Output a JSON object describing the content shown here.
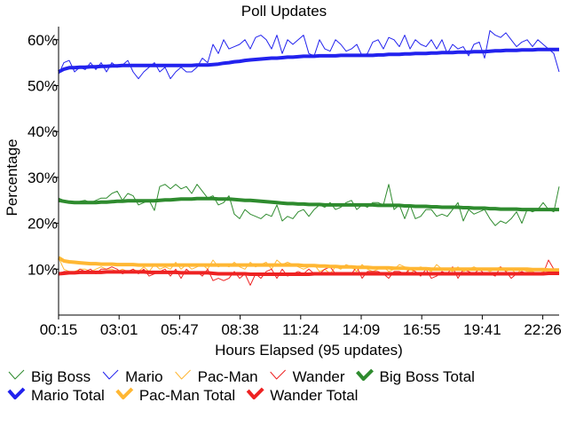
{
  "chart_data": {
    "type": "line",
    "title": "Poll Updates",
    "xlabel": "Hours Elapsed (95 updates)",
    "ylabel": "Percentage",
    "x_ticks": [
      "00:15",
      "03:01",
      "05:47",
      "08:38",
      "11:24",
      "14:09",
      "16:55",
      "19:41",
      "22:26"
    ],
    "y_ticks": [
      "10%",
      "20%",
      "30%",
      "40%",
      "50%",
      "60%"
    ],
    "ylim": [
      0,
      62
    ],
    "n_updates": 95,
    "grid": false,
    "legend_position": "bottom",
    "series": [
      {
        "name": "Big Boss",
        "color": "#2e8b2e",
        "style": "thin",
        "values": [
          25.5,
          25,
          24.5,
          24.5,
          24.8,
          25,
          24.5,
          25,
          25.5,
          25.5,
          26.5,
          27,
          25,
          26.5,
          26,
          24,
          24.5,
          25,
          22.8,
          28,
          28.5,
          27.5,
          28.5,
          27.5,
          28,
          26.5,
          28.5,
          27,
          25.5,
          26,
          24,
          24.5,
          26,
          22,
          21,
          23,
          22,
          21.5,
          21,
          22,
          21.5,
          24,
          20.5,
          21.5,
          21,
          22.5,
          23,
          21.5,
          23,
          24,
          23.5,
          24.5,
          23,
          23.5,
          24.5,
          25,
          23,
          24,
          23.5,
          24.5,
          24.5,
          24,
          28.5,
          23,
          24,
          21,
          24,
          21,
          21.5,
          23,
          23,
          21.5,
          22,
          21.5,
          23,
          24.5,
          20.5,
          23,
          22,
          22.5,
          23,
          21,
          19.5,
          20.5,
          20,
          21,
          22.5,
          20,
          23,
          22.5,
          23,
          24.5,
          23,
          22.5,
          28
        ]
      },
      {
        "name": "Mario",
        "color": "#2222ee",
        "style": "thin",
        "values": [
          52.5,
          55,
          55.5,
          53,
          54,
          53.5,
          55,
          53.5,
          55,
          53,
          55,
          54,
          54.5,
          55.5,
          53,
          51.5,
          53,
          54,
          55,
          53,
          54,
          51.5,
          53,
          54,
          53,
          53,
          54,
          56,
          55,
          59,
          57,
          60,
          58,
          58.5,
          59,
          60,
          58,
          60.5,
          61,
          60,
          58,
          61,
          57,
          60,
          59,
          60,
          61,
          57,
          56.5,
          60,
          58,
          57.5,
          60,
          59,
          57.5,
          58,
          59,
          56.5,
          57,
          59.5,
          60,
          58,
          60.5,
          60,
          58.5,
          61,
          58,
          60,
          59,
          58.5,
          60,
          58,
          60,
          57,
          59,
          58,
          58.5,
          56.5,
          59,
          59.5,
          56,
          62,
          61,
          60.5,
          61.5,
          60,
          58.5,
          59.5,
          60,
          58.5,
          60,
          59,
          58,
          57,
          53
        ]
      },
      {
        "name": "Pac-Man",
        "color": "#ffb733",
        "style": "thin",
        "values": [
          12.5,
          10,
          9.5,
          9.5,
          10,
          10,
          9.5,
          10,
          10.5,
          10,
          10,
          9.5,
          10,
          9.5,
          10,
          9.5,
          10.5,
          9.5,
          11,
          10,
          10.5,
          10,
          11.5,
          10,
          11,
          10,
          10.5,
          11,
          10,
          12,
          10.5,
          11,
          10.5,
          11.5,
          10.5,
          10,
          11.5,
          10.5,
          11,
          11.5,
          10,
          12,
          11,
          11.5,
          11,
          10.5,
          10,
          10.5,
          11,
          9.5,
          10,
          9,
          10.5,
          10,
          11,
          10.5,
          9.5,
          11,
          10,
          9.5,
          10,
          10.5,
          9.5,
          10,
          11,
          10.5,
          9,
          10,
          10.5,
          10,
          9.5,
          11,
          10,
          10,
          9.5,
          10.5,
          9.5,
          10,
          10.5,
          10,
          10,
          9.5,
          10,
          10.5,
          9.5,
          10,
          9,
          10,
          9.5,
          9.5,
          9,
          9.5,
          10,
          9.5,
          9
        ]
      },
      {
        "name": "Wander",
        "color": "#ee2222",
        "style": "thin",
        "values": [
          9,
          9.5,
          9.5,
          9,
          10,
          9.5,
          10,
          9,
          10,
          10,
          10.5,
          10,
          9,
          9.5,
          10,
          9,
          10,
          8.5,
          9,
          9.5,
          10,
          8.5,
          10,
          8,
          10,
          9,
          9.5,
          8.5,
          10,
          7.5,
          8,
          7.5,
          8,
          9.5,
          8,
          9,
          6.5,
          9,
          8,
          9.5,
          10,
          8,
          10,
          8.5,
          9,
          9.5,
          9,
          10,
          9,
          9,
          10,
          10.5,
          9,
          9,
          9,
          9,
          10.5,
          8,
          9.5,
          9.5,
          9.5,
          9,
          8,
          9.5,
          9.5,
          9,
          10,
          9.5,
          8.5,
          10,
          8,
          8.5,
          9.5,
          9,
          10.5,
          8,
          10,
          9.5,
          9,
          10,
          9,
          9,
          8.5,
          10.5,
          9.5,
          8,
          9,
          9.5,
          9,
          9,
          9,
          9,
          12,
          10,
          9
        ]
      },
      {
        "name": "Big Boss Total",
        "color": "#2e8b2e",
        "style": "thick",
        "values": [
          25,
          24.8,
          24.6,
          24.5,
          24.5,
          24.5,
          24.5,
          24.5,
          24.6,
          24.6,
          24.7,
          24.8,
          24.8,
          24.9,
          24.9,
          24.9,
          24.9,
          24.9,
          24.9,
          25,
          25.1,
          25.1,
          25.2,
          25.3,
          25.3,
          25.3,
          25.4,
          25.4,
          25.4,
          25.4,
          25.3,
          25.3,
          25.3,
          25.2,
          25.1,
          25,
          25,
          24.9,
          24.8,
          24.7,
          24.6,
          24.5,
          24.4,
          24.3,
          24.3,
          24.2,
          24.2,
          24.1,
          24.1,
          24.1,
          24,
          24,
          24,
          24,
          24,
          24,
          24,
          24,
          24,
          24,
          23.9,
          23.9,
          23.9,
          23.9,
          23.9,
          23.8,
          23.8,
          23.7,
          23.7,
          23.7,
          23.6,
          23.6,
          23.5,
          23.5,
          23.5,
          23.5,
          23.4,
          23.4,
          23.3,
          23.3,
          23.3,
          23.2,
          23.2,
          23.1,
          23.1,
          23.1,
          23.1,
          23,
          23,
          23,
          23,
          23,
          23,
          23,
          23
        ]
      },
      {
        "name": "Mario Total",
        "color": "#2222ee",
        "style": "thick",
        "values": [
          53,
          53.6,
          53.9,
          53.9,
          54,
          54,
          54.1,
          54.1,
          54.2,
          54.2,
          54.3,
          54.3,
          54.4,
          54.4,
          54.4,
          54.4,
          54.4,
          54.4,
          54.4,
          54.4,
          54.4,
          54.4,
          54.4,
          54.4,
          54.4,
          54.4,
          54.5,
          54.5,
          54.5,
          54.6,
          54.7,
          54.9,
          55,
          55.2,
          55.3,
          55.5,
          55.6,
          55.7,
          55.8,
          55.9,
          56,
          56,
          56.1,
          56.2,
          56.2,
          56.3,
          56.4,
          56.4,
          56.4,
          56.5,
          56.5,
          56.5,
          56.5,
          56.6,
          56.6,
          56.6,
          56.6,
          56.6,
          56.6,
          56.6,
          56.7,
          56.7,
          56.8,
          56.8,
          56.8,
          56.9,
          56.9,
          57,
          57,
          57,
          57.1,
          57.1,
          57.2,
          57.2,
          57.2,
          57.3,
          57.3,
          57.3,
          57.4,
          57.4,
          57.4,
          57.5,
          57.6,
          57.6,
          57.7,
          57.7,
          57.7,
          57.8,
          57.8,
          57.8,
          57.9,
          57.9,
          57.9,
          57.9,
          57.9
        ]
      },
      {
        "name": "Pac-Man Total",
        "color": "#ffb733",
        "style": "thick",
        "values": [
          12.5,
          11.8,
          11.6,
          11.5,
          11.4,
          11.3,
          11.2,
          11.2,
          11.1,
          11.1,
          11.1,
          11,
          11,
          11,
          11,
          10.9,
          10.9,
          10.9,
          10.9,
          10.9,
          10.9,
          10.9,
          10.9,
          10.9,
          10.9,
          10.9,
          10.9,
          10.9,
          10.9,
          10.9,
          10.9,
          10.9,
          10.9,
          10.9,
          10.9,
          10.9,
          10.9,
          10.9,
          10.9,
          10.9,
          10.9,
          10.9,
          10.9,
          10.9,
          10.9,
          10.9,
          10.8,
          10.8,
          10.8,
          10.7,
          10.7,
          10.6,
          10.6,
          10.5,
          10.5,
          10.5,
          10.4,
          10.4,
          10.4,
          10.3,
          10.3,
          10.3,
          10.3,
          10.2,
          10.2,
          10.2,
          10.1,
          10.1,
          10.1,
          10.1,
          10,
          10,
          10,
          10,
          10,
          10,
          10,
          10,
          10,
          10,
          10,
          10,
          10,
          10,
          10,
          10,
          10,
          10,
          10,
          9.9,
          9.9,
          9.9,
          9.8,
          9.8,
          9.8
        ]
      },
      {
        "name": "Wander Total",
        "color": "#ee2222",
        "style": "thick",
        "values": [
          9,
          9.1,
          9.2,
          9.2,
          9.3,
          9.3,
          9.3,
          9.3,
          9.3,
          9.4,
          9.4,
          9.4,
          9.4,
          9.4,
          9.4,
          9.4,
          9.4,
          9.3,
          9.3,
          9.3,
          9.3,
          9.3,
          9.3,
          9.2,
          9.2,
          9.2,
          9.2,
          9.2,
          9.2,
          9.1,
          9,
          9,
          9,
          9,
          9,
          9,
          8.9,
          8.9,
          8.9,
          8.9,
          8.9,
          8.9,
          8.9,
          8.9,
          8.9,
          8.9,
          8.9,
          8.9,
          9,
          9,
          9,
          9,
          9,
          9,
          9,
          9,
          9,
          9,
          9,
          9,
          9,
          9,
          9,
          9,
          9,
          9,
          9,
          9,
          9,
          9,
          9,
          9,
          9,
          9,
          9,
          9,
          9,
          9,
          9,
          9,
          9,
          9,
          9,
          9,
          9,
          9,
          9,
          9,
          9,
          9,
          9,
          9,
          9.1,
          9.1,
          9.1
        ]
      }
    ]
  }
}
